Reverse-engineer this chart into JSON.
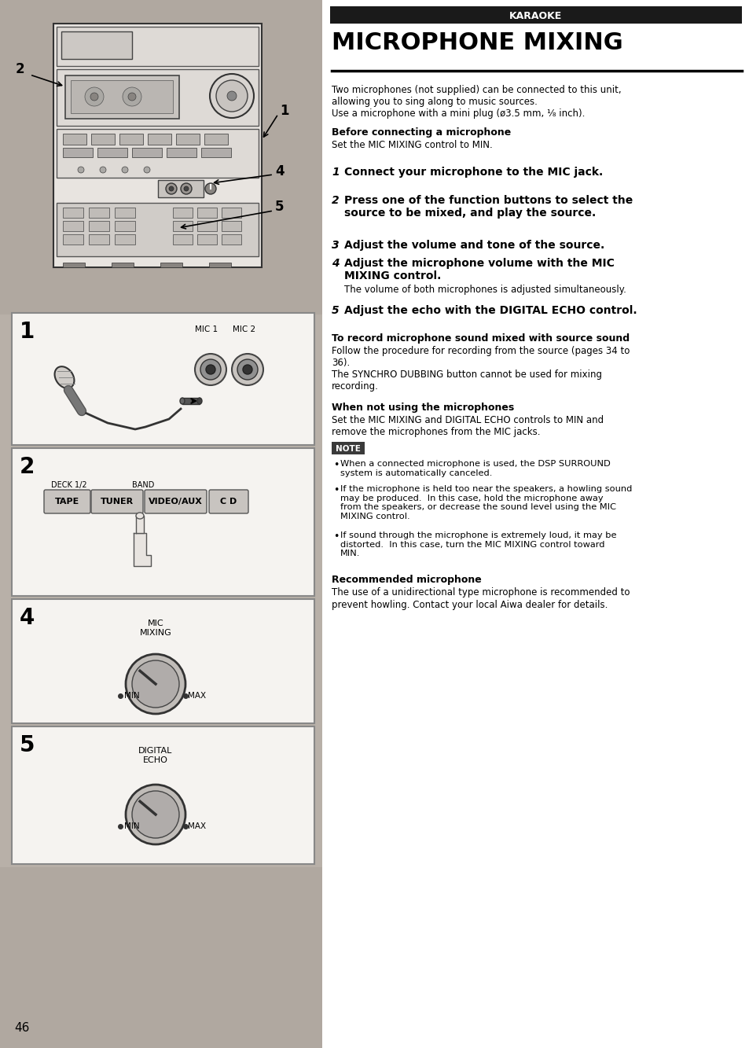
{
  "page_bg": "#c8c0b8",
  "left_panel_bg": "#c8c0b8",
  "right_panel_bg": "#ffffff",
  "karaoke_bar_color": "#1a1a1a",
  "karaoke_text": "KARAOKE",
  "karaoke_text_color": "#ffffff",
  "title_text": "MICROPHONE MIXING",
  "title_color": "#000000",
  "intro_text": "Two microphones (not supplied) can be connected to this unit,\nallowing you to sing along to music sources.\nUse a microphone with a mini plug (ø3.5 mm, ¹⁄₈ inch).",
  "before_heading": "Before connecting a microphone",
  "before_body": "Set the MIC MIXING control to MIN.",
  "steps": [
    {
      "num": "1",
      "text": "Connect your microphone to the MIC jack.",
      "bold": true
    },
    {
      "num": "2",
      "text": "Press one of the function buttons to select the\nsource to be mixed, and play the source.",
      "bold": true
    },
    {
      "num": "3",
      "text": "Adjust the volume and tone of the source.",
      "bold": true
    },
    {
      "num": "4",
      "text": "Adjust the microphone volume with the MIC\nMIXING control.",
      "bold": true,
      "sub": "The volume of both microphones is adjusted simultaneously."
    },
    {
      "num": "5",
      "text": "Adjust the echo with the DIGITAL ECHO control.",
      "bold": true
    }
  ],
  "record_heading": "To record microphone sound mixed with source sound",
  "record_body": "Follow the procedure for recording from the source (pages 34 to\n36).\nThe SYNCHRO DUBBING button cannot be used for mixing\nrecording.",
  "when_heading": "When not using the microphones",
  "when_body": "Set the MIC MIXING and DIGITAL ECHO controls to MIN and\nremove the microphones from the MIC jacks.",
  "note_text": "NOTE",
  "note_bullets": [
    "When a connected microphone is used, the DSP SURROUND\nsystem is automatically canceled.",
    "If the microphone is held too near the speakers, a howling sound\nmay be produced.  In this case, hold the microphone away\nfrom the speakers, or decrease the sound level using the MIC\nMIXING control.",
    "If sound through the microphone is extremely loud, it may be\ndistorted.  In this case, turn the MIC MIXING control toward\nMIN."
  ],
  "recommended_heading": "Recommended microphone",
  "recommended_body": "The use of a unidirectional type microphone is recommended to\nprevent howling. Contact your local Aiwa dealer for details.",
  "page_num": "46",
  "panel1_label": "1",
  "panel2_label": "2",
  "panel4_label": "4",
  "panel5_label": "5",
  "mic1_label": "MIC 1",
  "mic2_label": "MIC 2",
  "deck_label": "DECK 1/2",
  "band_label": "BAND",
  "btn1": "TAPE",
  "btn2": "TUNER",
  "btn3": "VIDEO/AUX",
  "btn4": "C D",
  "mic_mixing_label": "MIC\nMIXING",
  "digital_echo_label": "DIGITAL\nECHO",
  "min_label": "MIN",
  "max_label": "MAX"
}
